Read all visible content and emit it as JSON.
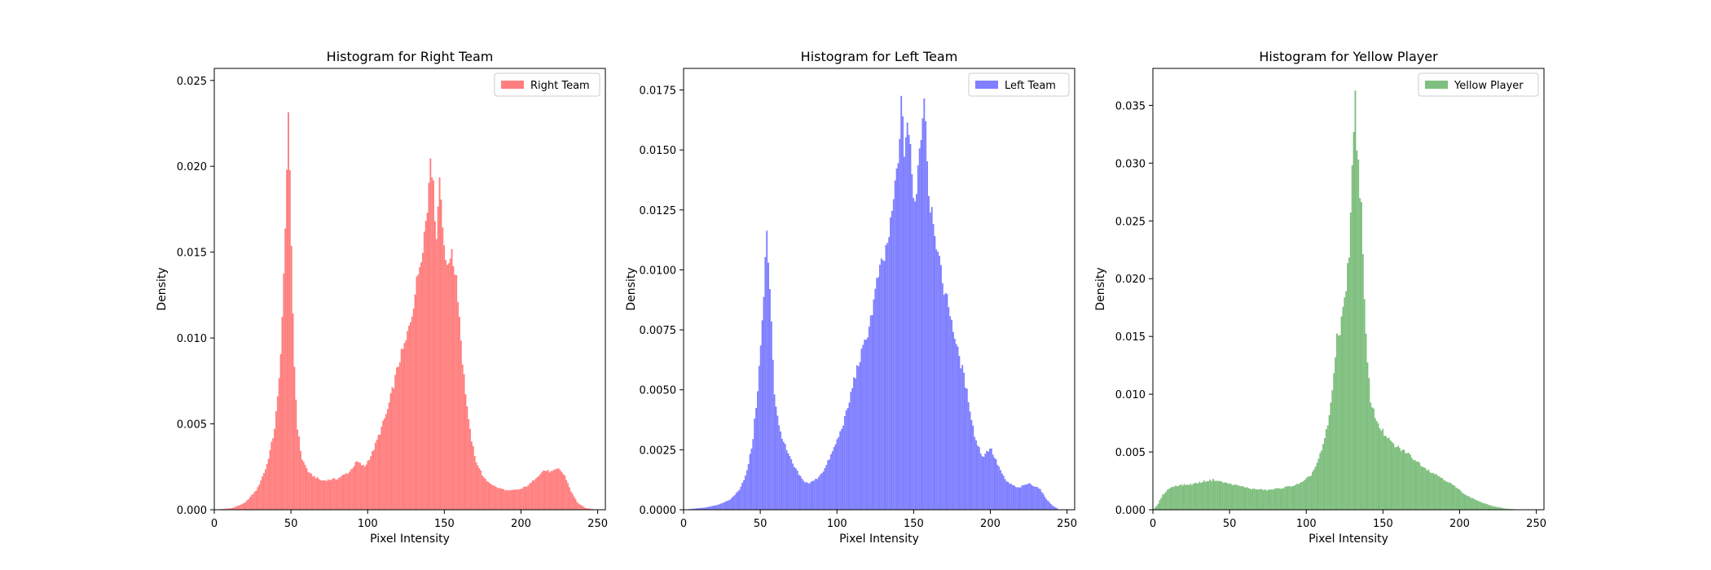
{
  "chart_data": [
    {
      "type": "bar",
      "title": "Histogram for Right Team",
      "xlabel": "Pixel Intensity",
      "ylabel": "Density",
      "xlim": [
        0,
        255
      ],
      "ylim": [
        0,
        0.0257
      ],
      "xticks": [
        0,
        50,
        100,
        150,
        200,
        250
      ],
      "xtick_labels": [
        "0",
        "50",
        "100",
        "150",
        "200",
        "250"
      ],
      "yticks": [
        0,
        0.005,
        0.01,
        0.015,
        0.02,
        0.025
      ],
      "ytick_labels": [
        "0.000",
        "0.005",
        "0.010",
        "0.015",
        "0.020",
        "0.025"
      ],
      "grid": false,
      "legend_position": "top-right",
      "color": "#ff7f7f",
      "series": [
        {
          "name": "Right Team",
          "color": "#ff7f7f"
        }
      ],
      "profile": [
        [
          0,
          0
        ],
        [
          12,
          0.0001
        ],
        [
          20,
          0.0004
        ],
        [
          28,
          0.0012
        ],
        [
          34,
          0.0025
        ],
        [
          39,
          0.0045
        ],
        [
          42,
          0.007
        ],
        [
          44,
          0.0105
        ],
        [
          46,
          0.015
        ],
        [
          47,
          0.0185
        ],
        [
          48,
          0.0245
        ],
        [
          49,
          0.0205
        ],
        [
          50,
          0.016
        ],
        [
          52,
          0.009
        ],
        [
          54,
          0.005
        ],
        [
          57,
          0.003
        ],
        [
          62,
          0.0021
        ],
        [
          70,
          0.0017
        ],
        [
          80,
          0.0018
        ],
        [
          88,
          0.0022
        ],
        [
          93,
          0.0028
        ],
        [
          98,
          0.0025
        ],
        [
          103,
          0.0033
        ],
        [
          108,
          0.0045
        ],
        [
          113,
          0.0058
        ],
        [
          117,
          0.0073
        ],
        [
          121,
          0.0088
        ],
        [
          125,
          0.0098
        ],
        [
          129,
          0.0115
        ],
        [
          133,
          0.0138
        ],
        [
          136,
          0.0155
        ],
        [
          139,
          0.0175
        ],
        [
          141,
          0.0212
        ],
        [
          143,
          0.0185
        ],
        [
          145,
          0.016
        ],
        [
          147,
          0.0195
        ],
        [
          149,
          0.0168
        ],
        [
          151,
          0.014
        ],
        [
          154,
          0.015
        ],
        [
          158,
          0.0136
        ],
        [
          162,
          0.0085
        ],
        [
          166,
          0.005
        ],
        [
          170,
          0.003
        ],
        [
          176,
          0.0018
        ],
        [
          184,
          0.0013
        ],
        [
          192,
          0.0011
        ],
        [
          200,
          0.0012
        ],
        [
          206,
          0.0015
        ],
        [
          210,
          0.0019
        ],
        [
          215,
          0.0023
        ],
        [
          220,
          0.0022
        ],
        [
          225,
          0.0024
        ],
        [
          229,
          0.0019
        ],
        [
          233,
          0.001
        ],
        [
          237,
          0.0004
        ],
        [
          242,
          0.0001
        ],
        [
          250,
          0
        ]
      ]
    },
    {
      "type": "bar",
      "title": "Histogram for Left Team",
      "xlabel": "Pixel Intensity",
      "ylabel": "Density",
      "xlim": [
        0,
        255
      ],
      "ylim": [
        0,
        0.0184
      ],
      "xticks": [
        0,
        50,
        100,
        150,
        200,
        250
      ],
      "xtick_labels": [
        "0",
        "50",
        "100",
        "150",
        "200",
        "250"
      ],
      "yticks": [
        0,
        0.0025,
        0.005,
        0.0075,
        0.01,
        0.0125,
        0.015,
        0.0175
      ],
      "ytick_labels": [
        "0.0000",
        "0.0025",
        "0.0050",
        "0.0075",
        "0.0100",
        "0.0125",
        "0.0150",
        "0.0175"
      ],
      "grid": false,
      "legend_position": "top-right",
      "color": "#7f7fff",
      "series": [
        {
          "name": "Left Team",
          "color": "#7f7fff"
        }
      ],
      "profile": [
        [
          0,
          0
        ],
        [
          15,
          0.0001
        ],
        [
          22,
          0.0002
        ],
        [
          30,
          0.0004
        ],
        [
          36,
          0.0008
        ],
        [
          41,
          0.0015
        ],
        [
          45,
          0.0028
        ],
        [
          48,
          0.0048
        ],
        [
          50,
          0.0065
        ],
        [
          52,
          0.0085
        ],
        [
          53,
          0.0098
        ],
        [
          54,
          0.0117
        ],
        [
          55,
          0.0107
        ],
        [
          57,
          0.0085
        ],
        [
          59,
          0.005
        ],
        [
          62,
          0.0035
        ],
        [
          67,
          0.0025
        ],
        [
          72,
          0.0018
        ],
        [
          78,
          0.0012
        ],
        [
          82,
          0.0011
        ],
        [
          87,
          0.0013
        ],
        [
          92,
          0.0017
        ],
        [
          97,
          0.0024
        ],
        [
          102,
          0.0032
        ],
        [
          107,
          0.0042
        ],
        [
          111,
          0.0054
        ],
        [
          115,
          0.0063
        ],
        [
          119,
          0.0071
        ],
        [
          123,
          0.0083
        ],
        [
          127,
          0.0098
        ],
        [
          131,
          0.0105
        ],
        [
          135,
          0.0118
        ],
        [
          138,
          0.0135
        ],
        [
          140,
          0.0145
        ],
        [
          141,
          0.016
        ],
        [
          142,
          0.0168
        ],
        [
          144,
          0.015
        ],
        [
          146,
          0.0163
        ],
        [
          148,
          0.0148
        ],
        [
          150,
          0.0128
        ],
        [
          152,
          0.0135
        ],
        [
          154,
          0.0152
        ],
        [
          156,
          0.0165
        ],
        [
          157,
          0.0175
        ],
        [
          158,
          0.0162
        ],
        [
          160,
          0.013
        ],
        [
          163,
          0.0122
        ],
        [
          166,
          0.0105
        ],
        [
          170,
          0.0092
        ],
        [
          174,
          0.0082
        ],
        [
          178,
          0.0068
        ],
        [
          182,
          0.0058
        ],
        [
          186,
          0.0045
        ],
        [
          190,
          0.003
        ],
        [
          195,
          0.0022
        ],
        [
          200,
          0.0026
        ],
        [
          204,
          0.002
        ],
        [
          210,
          0.0012
        ],
        [
          218,
          0.0009
        ],
        [
          225,
          0.0011
        ],
        [
          232,
          0.0009
        ],
        [
          236,
          0.0005
        ],
        [
          240,
          0.0002
        ],
        [
          245,
          0
        ]
      ]
    },
    {
      "type": "bar",
      "title": "Histogram for Yellow Player",
      "xlabel": "Pixel Intensity",
      "ylabel": "Density",
      "xlim": [
        0,
        255
      ],
      "ylim": [
        0,
        0.0382
      ],
      "xticks": [
        0,
        50,
        100,
        150,
        200,
        250
      ],
      "xtick_labels": [
        "0",
        "50",
        "100",
        "150",
        "200",
        "250"
      ],
      "yticks": [
        0,
        0.005,
        0.01,
        0.015,
        0.02,
        0.025,
        0.03,
        0.035
      ],
      "ytick_labels": [
        "0.000",
        "0.005",
        "0.010",
        "0.015",
        "0.020",
        "0.025",
        "0.030",
        "0.035"
      ],
      "grid": false,
      "legend_position": "top-right",
      "color": "#7fbf7f",
      "series": [
        {
          "name": "Yellow Player",
          "color": "#7fbf7f"
        }
      ],
      "profile": [
        [
          0,
          0
        ],
        [
          3,
          0.0004
        ],
        [
          6,
          0.0012
        ],
        [
          10,
          0.0018
        ],
        [
          15,
          0.0021
        ],
        [
          25,
          0.0022
        ],
        [
          35,
          0.0025
        ],
        [
          40,
          0.0026
        ],
        [
          45,
          0.0024
        ],
        [
          55,
          0.0021
        ],
        [
          65,
          0.0018
        ],
        [
          75,
          0.0017
        ],
        [
          85,
          0.0019
        ],
        [
          92,
          0.0021
        ],
        [
          98,
          0.0024
        ],
        [
          103,
          0.003
        ],
        [
          107,
          0.004
        ],
        [
          111,
          0.0055
        ],
        [
          115,
          0.008
        ],
        [
          118,
          0.0115
        ],
        [
          120,
          0.0155
        ],
        [
          122,
          0.0148
        ],
        [
          124,
          0.0175
        ],
        [
          126,
          0.0195
        ],
        [
          128,
          0.0225
        ],
        [
          130,
          0.029
        ],
        [
          131,
          0.0335
        ],
        [
          132,
          0.0362
        ],
        [
          133,
          0.032
        ],
        [
          134,
          0.0295
        ],
        [
          136,
          0.026
        ],
        [
          138,
          0.0175
        ],
        [
          140,
          0.0125
        ],
        [
          142,
          0.0095
        ],
        [
          145,
          0.008
        ],
        [
          148,
          0.0072
        ],
        [
          152,
          0.0063
        ],
        [
          158,
          0.0055
        ],
        [
          165,
          0.005
        ],
        [
          172,
          0.0042
        ],
        [
          180,
          0.0034
        ],
        [
          188,
          0.0028
        ],
        [
          195,
          0.0022
        ],
        [
          205,
          0.0012
        ],
        [
          215,
          0.0006
        ],
        [
          222,
          0.0003
        ],
        [
          230,
          0.0001
        ],
        [
          240,
          0
        ]
      ]
    }
  ]
}
